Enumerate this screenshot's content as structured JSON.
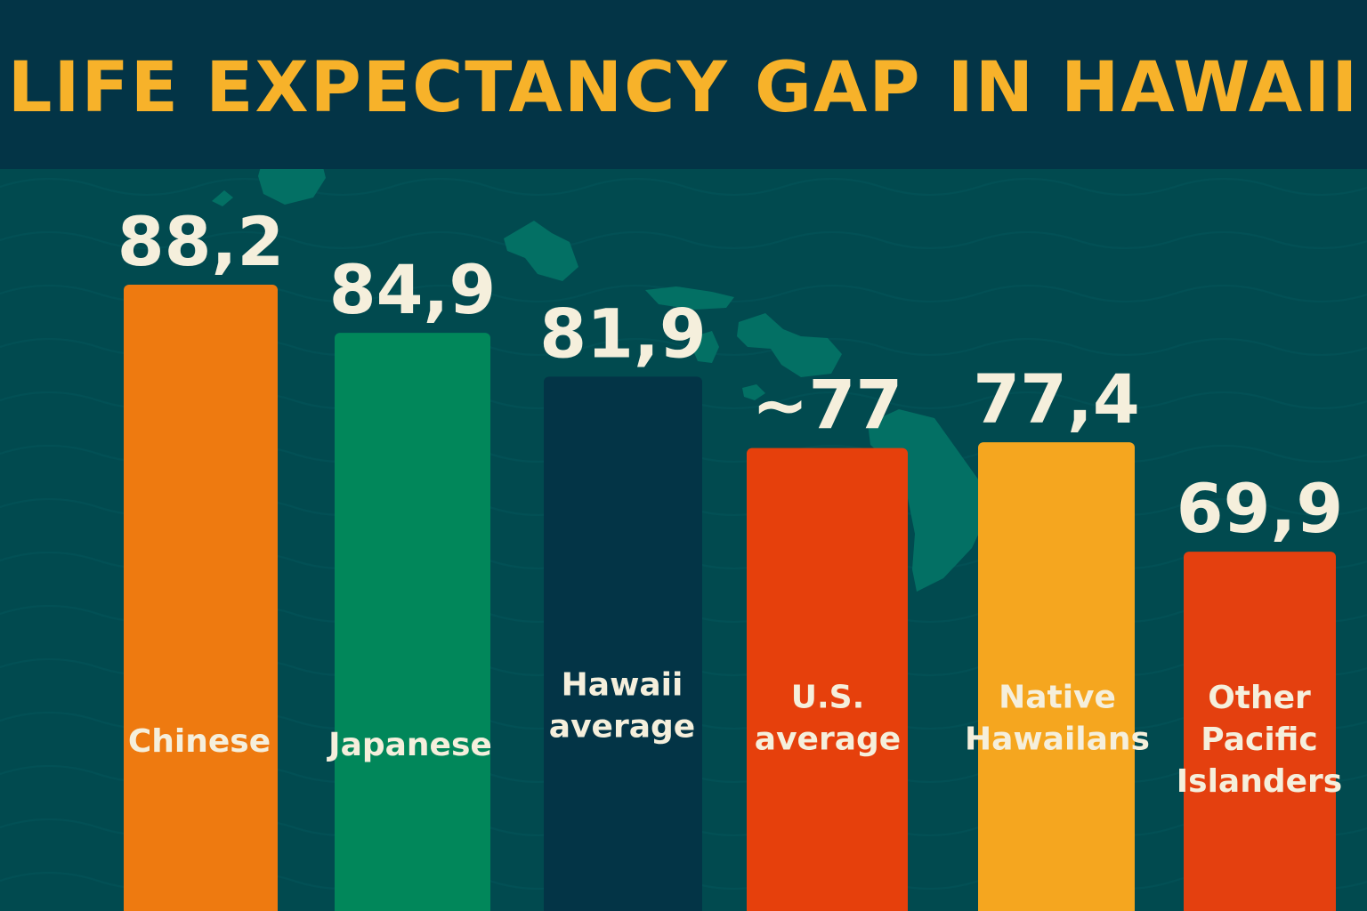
{
  "chart_data": {
    "type": "bar",
    "title": "LIFE EXPECTANCY GAP IN HAWAII",
    "xlabel": "",
    "ylabel": "",
    "grid": false,
    "categories": [
      "Chinese",
      "Japanese",
      "Hawaii average",
      "U.S. average",
      "Native Hawailans",
      "Other Pacific Islanders"
    ],
    "category_lines": [
      [
        "Chinese"
      ],
      [
        "Japanese"
      ],
      [
        "Hawaii",
        "average"
      ],
      [
        "U.S.",
        "average"
      ],
      [
        "Native",
        "Hawailans"
      ],
      [
        "Other",
        "Pacific",
        "Islanders"
      ]
    ],
    "values": [
      88.2,
      84.9,
      81.9,
      77,
      77.4,
      69.9
    ],
    "value_labels": [
      "88,2",
      "84,9",
      "81,9",
      "~77",
      "77,4",
      "69,9"
    ],
    "colors": [
      "#ee7a10",
      "#01875a",
      "#033446",
      "#e6400c",
      "#f5a61f",
      "#e4400f"
    ],
    "title_color": "#f7b22a",
    "background_color": "#014a4f",
    "map_color": "#037064"
  }
}
